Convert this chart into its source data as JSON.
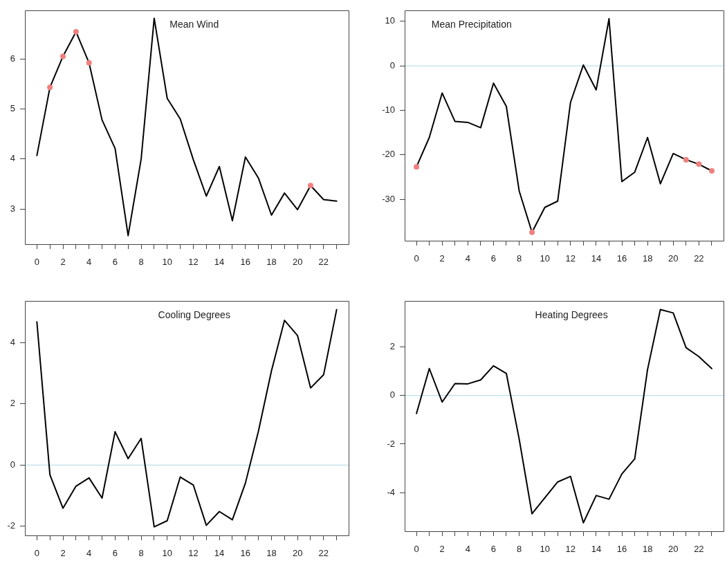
{
  "chart_data": [
    {
      "type": "line",
      "title": "Mean Wind",
      "x": [
        0,
        1,
        2,
        3,
        4,
        5,
        6,
        7,
        8,
        9,
        10,
        11,
        12,
        13,
        14,
        15,
        16,
        17,
        18,
        19,
        20,
        21,
        22,
        23
      ],
      "xlim": [
        -0.92,
        23.92
      ],
      "xticks": [
        0,
        {
          "value": 1,
          "label": null
        },
        2,
        {
          "value": 3,
          "label": null
        },
        4,
        {
          "value": 5,
          "label": null
        },
        6,
        {
          "value": 7,
          "label": null
        },
        8,
        {
          "value": 9,
          "label": null
        },
        10,
        {
          "value": 11,
          "label": null
        },
        12,
        {
          "value": 13,
          "label": null
        },
        14,
        {
          "value": 15,
          "label": null
        },
        16,
        {
          "value": 17,
          "label": null
        },
        18,
        {
          "value": 19,
          "label": null
        },
        20,
        {
          "value": 21,
          "label": null
        },
        22,
        {
          "value": 23,
          "label": null
        }
      ],
      "ylim": [
        2.3,
        6.97
      ],
      "yticks": [
        3,
        4,
        5,
        6
      ],
      "series": [
        {
          "color": "#000000",
          "values": [
            4.07,
            5.43,
            6.05,
            6.54,
            5.92,
            4.78,
            4.21,
            2.47,
            4.0,
            6.81,
            5.21,
            4.8,
            3.99,
            3.26,
            3.85,
            2.77,
            4.04,
            3.62,
            2.88,
            3.32,
            2.99,
            3.47,
            3.19,
            3.16
          ]
        },
        {
          "type": "scatter",
          "x": [
            1,
            2,
            3,
            4,
            21
          ],
          "color": "#f08080",
          "marker": "circle",
          "values": [
            5.43,
            6.05,
            6.54,
            5.92,
            3.47
          ]
        }
      ]
    },
    {
      "type": "line",
      "title": "Mean Precipitation",
      "x": [
        0,
        1,
        2,
        3,
        4,
        5,
        6,
        7,
        8,
        9,
        10,
        11,
        12,
        13,
        14,
        15,
        16,
        17,
        18,
        19,
        20,
        21,
        22,
        23
      ],
      "xlim": [
        -0.92,
        23.92
      ],
      "xticks": [
        0,
        {
          "value": 1,
          "label": null
        },
        2,
        {
          "value": 3,
          "label": null
        },
        4,
        {
          "value": 5,
          "label": null
        },
        6,
        {
          "value": 7,
          "label": null
        },
        8,
        {
          "value": 9,
          "label": null
        },
        10,
        {
          "value": 11,
          "label": null
        },
        12,
        {
          "value": 13,
          "label": null
        },
        14,
        {
          "value": 15,
          "label": null
        },
        16,
        {
          "value": 17,
          "label": null
        },
        18,
        {
          "value": 19,
          "label": null
        },
        20,
        {
          "value": 21,
          "label": null
        },
        22,
        {
          "value": 23,
          "label": null
        }
      ],
      "ylim": [
        -39.3,
        12.5
      ],
      "yticks": [
        -30,
        -20,
        -10,
        0,
        10
      ],
      "ref_lines": [
        {
          "axis": "y",
          "value": 0,
          "color": "#add8e6"
        }
      ],
      "series": [
        {
          "color": "#000000",
          "values": [
            -22.7,
            -16.1,
            -6.1,
            -12.5,
            -12.7,
            -13.9,
            -3.9,
            -9.1,
            -28.1,
            -37.4,
            -31.8,
            -30.4,
            -8.2,
            0.2,
            -5.4,
            10.6,
            -26.0,
            -23.9,
            -16.1,
            -26.5,
            -19.7,
            -21.1,
            -22.1,
            -23.6
          ]
        },
        {
          "type": "scatter",
          "x": [
            0,
            9,
            21,
            22,
            23
          ],
          "color": "#f08080",
          "marker": "circle",
          "values": [
            -22.7,
            -37.4,
            -21.1,
            -22.1,
            -23.6
          ]
        }
      ]
    },
    {
      "type": "line",
      "title": "Cooling Degrees",
      "x": [
        0,
        1,
        2,
        3,
        4,
        5,
        6,
        7,
        8,
        9,
        10,
        11,
        12,
        13,
        14,
        15,
        16,
        17,
        18,
        19,
        20,
        21,
        22,
        23
      ],
      "xlim": [
        -0.92,
        23.92
      ],
      "xticks": [
        0,
        {
          "value": 1,
          "label": null
        },
        2,
        {
          "value": 3,
          "label": null
        },
        4,
        {
          "value": 5,
          "label": null
        },
        6,
        {
          "value": 7,
          "label": null
        },
        8,
        {
          "value": 9,
          "label": null
        },
        10,
        {
          "value": 11,
          "label": null
        },
        12,
        {
          "value": 13,
          "label": null
        },
        14,
        {
          "value": 15,
          "label": null
        },
        16,
        {
          "value": 17,
          "label": null
        },
        18,
        {
          "value": 19,
          "label": null
        },
        20,
        {
          "value": 21,
          "label": null
        },
        22,
        {
          "value": 23,
          "label": null
        }
      ],
      "ylim": [
        -2.3,
        5.37
      ],
      "yticks": [
        -2,
        0,
        2,
        4
      ],
      "ref_lines": [
        {
          "axis": "y",
          "value": 0,
          "color": "#add8e6"
        }
      ],
      "series": [
        {
          "color": "#000000",
          "values": [
            4.68,
            -0.32,
            -1.41,
            -0.69,
            -0.42,
            -1.08,
            1.09,
            0.21,
            0.87,
            -2.02,
            -1.82,
            -0.39,
            -0.65,
            -1.97,
            -1.52,
            -1.79,
            -0.59,
            1.11,
            3.08,
            4.73,
            4.23,
            2.52,
            2.95,
            5.08
          ]
        }
      ]
    },
    {
      "type": "line",
      "title": "Heating Degrees",
      "x": [
        0,
        1,
        2,
        3,
        4,
        5,
        6,
        7,
        8,
        9,
        10,
        11,
        12,
        13,
        14,
        15,
        16,
        17,
        18,
        19,
        20,
        21,
        22,
        23
      ],
      "xlim": [
        -0.92,
        23.92
      ],
      "xticks": [
        0,
        {
          "value": 1,
          "label": null
        },
        2,
        {
          "value": 3,
          "label": null
        },
        4,
        {
          "value": 5,
          "label": null
        },
        6,
        {
          "value": 7,
          "label": null
        },
        8,
        {
          "value": 9,
          "label": null
        },
        10,
        {
          "value": 11,
          "label": null
        },
        12,
        {
          "value": 13,
          "label": null
        },
        14,
        {
          "value": 15,
          "label": null
        },
        16,
        {
          "value": 17,
          "label": null
        },
        18,
        {
          "value": 19,
          "label": null
        },
        20,
        {
          "value": 21,
          "label": null
        },
        22,
        {
          "value": 23,
          "label": null
        }
      ],
      "ylim": [
        -5.59,
        3.9
      ],
      "yticks": [
        -4,
        -2,
        0,
        2
      ],
      "ref_lines": [
        {
          "axis": "y",
          "value": 0,
          "color": "#add8e6"
        }
      ],
      "series": [
        {
          "color": "#000000",
          "values": [
            -0.74,
            1.11,
            -0.27,
            0.49,
            0.48,
            0.64,
            1.22,
            0.91,
            -1.79,
            -4.87,
            -4.21,
            -3.56,
            -3.33,
            -5.24,
            -4.12,
            -4.27,
            -3.23,
            -2.61,
            1.07,
            3.54,
            3.4,
            1.97,
            1.6,
            1.11
          ]
        }
      ]
    }
  ]
}
